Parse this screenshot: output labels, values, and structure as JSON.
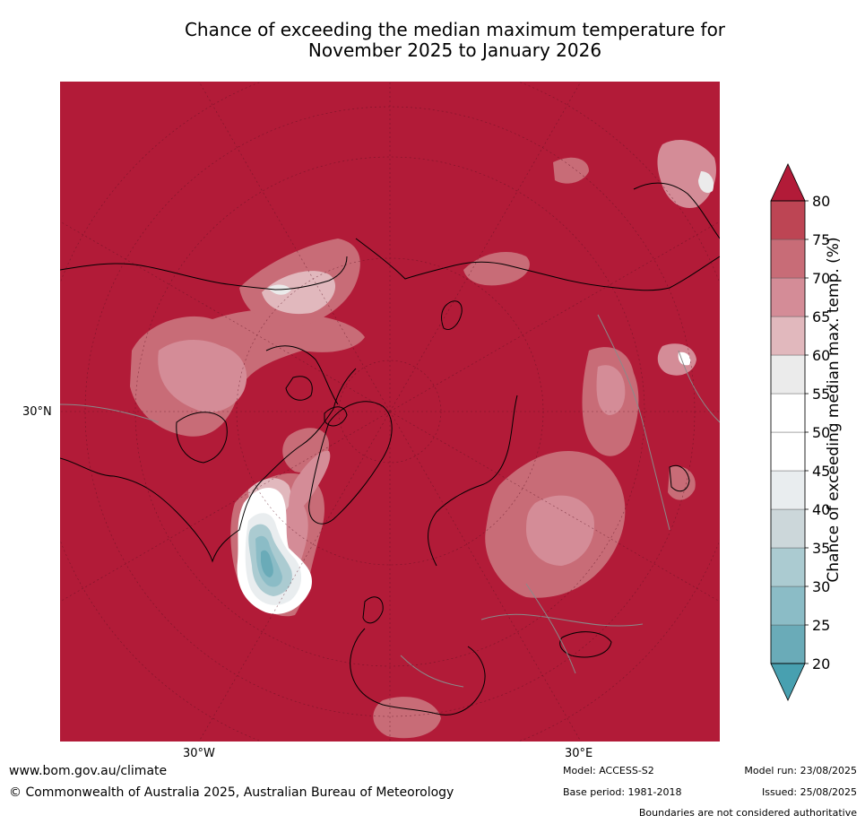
{
  "title": {
    "line1": "Chance of exceeding the median maximum temperature for",
    "line2": "November 2025 to January 2026"
  },
  "map": {
    "projection": "north-polar-stereographic",
    "background_color": "#b21b38",
    "lon_labels": [
      "30°W",
      "30°E"
    ],
    "lat_labels": [
      "30°N"
    ]
  },
  "legend": {
    "title": "Chance of exceeding median max. temp. (%)",
    "ticks": [
      20,
      25,
      30,
      35,
      40,
      45,
      50,
      55,
      60,
      65,
      70,
      75,
      80
    ],
    "colors": [
      "#6aabb8",
      "#8bbcc6",
      "#abcbd1",
      "#ccd7da",
      "#e9edef",
      "#ffffff",
      "#ffffff",
      "#ebebeb",
      "#e1b8bd",
      "#d48c97",
      "#c86c77",
      "#bd4554"
    ],
    "under_color": "#48a0b0",
    "over_color": "#b21b38"
  },
  "footer": {
    "url": "www.bom.gov.au/climate",
    "copyright": "© Commonwealth of Australia 2025, Australian Bureau of Meteorology",
    "model": "Model: ACCESS-S2",
    "base_period": "Base period: 1981-2018",
    "model_run": "Model run: 23/08/2025",
    "issued": "Issued: 25/08/2025",
    "boundaries": "Boundaries are not considered authoritative"
  }
}
